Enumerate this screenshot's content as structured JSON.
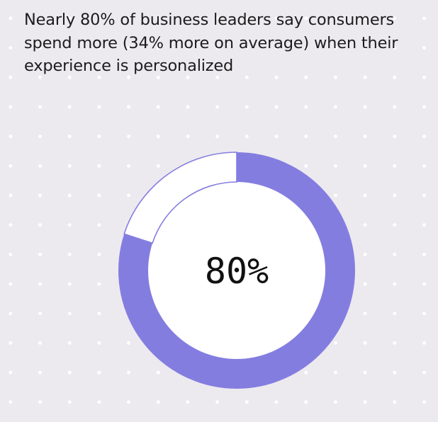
{
  "headline": "Nearly 80% of business leaders say consumers spend more (34% more on average) when their experience is personalized",
  "chart_data": {
    "type": "pie",
    "style": "donut",
    "center_label": "80%",
    "slices": [
      {
        "value": 80,
        "color": "#847de0"
      },
      {
        "value": 20,
        "color": "#ffffff",
        "outline": "#847de0"
      }
    ]
  }
}
